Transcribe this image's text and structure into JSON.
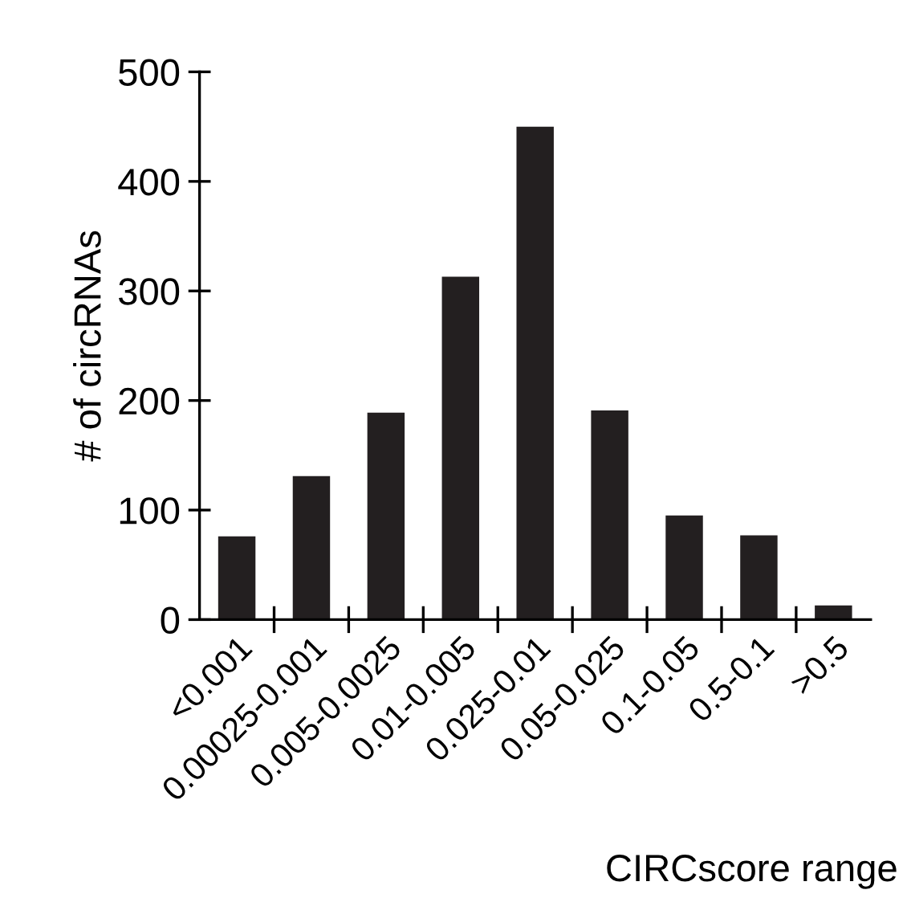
{
  "chart_data": {
    "type": "bar",
    "xlabel": "CIRCscore range",
    "ylabel": "# of circRNAs",
    "categories": [
      "<0.001",
      "0.00025-0.001",
      "0.005-0.0025",
      "0.01-0.005",
      "0.025-0.01",
      "0.05-0.025",
      "0.1-0.05",
      "0.5-0.1",
      ">0.5"
    ],
    "values": [
      76,
      131,
      189,
      313,
      450,
      191,
      95,
      77,
      13
    ],
    "color": "#231f20",
    "ylim": [
      0,
      500
    ],
    "yticks": [
      0,
      100,
      200,
      300,
      400,
      500
    ],
    "grid": false,
    "legend": false
  }
}
